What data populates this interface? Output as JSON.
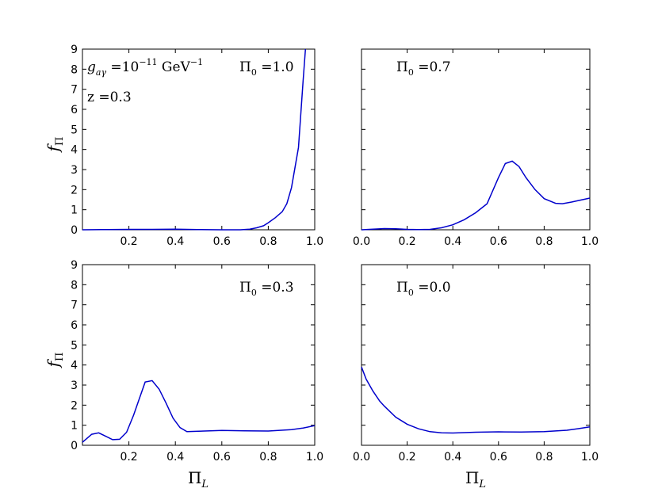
{
  "chart_data": [
    {
      "type": "line",
      "panel": "top-left",
      "annotations": [
        "g_aγ = 10^-11 GeV^-1",
        "z = 0.3",
        "Π_0 = 1.0"
      ],
      "ylabel": "f_Π",
      "xlabel": "",
      "xlim": [
        0.0,
        1.0
      ],
      "ylim": [
        0,
        9
      ],
      "x_ticks": [
        "0.2",
        "0.4",
        "0.6",
        "0.8",
        "1.0"
      ],
      "y_ticks": [
        "0",
        "1",
        "2",
        "3",
        "4",
        "5",
        "6",
        "7",
        "8",
        "9"
      ],
      "series": [
        {
          "x": [
            0.0,
            0.1,
            0.2,
            0.3,
            0.4,
            0.5,
            0.6,
            0.68,
            0.72,
            0.75,
            0.78,
            0.8,
            0.83,
            0.86,
            0.88,
            0.9,
            0.93,
            0.95,
            0.96
          ],
          "y": [
            0.0,
            0.01,
            0.02,
            0.02,
            0.03,
            0.01,
            0.0,
            0.0,
            0.03,
            0.1,
            0.2,
            0.35,
            0.6,
            0.9,
            1.3,
            2.1,
            4.1,
            7.4,
            9.0
          ]
        }
      ]
    },
    {
      "type": "line",
      "panel": "top-right",
      "annotations": [
        "Π_0 = 0.7"
      ],
      "ylabel": "",
      "xlabel": "",
      "xlim": [
        0.0,
        1.0
      ],
      "ylim": [
        0,
        9
      ],
      "x_ticks": [
        "0.0",
        "0.2",
        "0.4",
        "0.6",
        "0.8",
        "1.0"
      ],
      "y_ticks": [],
      "series": [
        {
          "x": [
            0.0,
            0.05,
            0.1,
            0.15,
            0.2,
            0.25,
            0.3,
            0.35,
            0.4,
            0.45,
            0.5,
            0.55,
            0.6,
            0.63,
            0.66,
            0.69,
            0.72,
            0.76,
            0.8,
            0.85,
            0.88,
            0.92,
            0.96,
            1.0
          ],
          "y": [
            0.0,
            0.03,
            0.06,
            0.05,
            0.02,
            0.01,
            0.02,
            0.1,
            0.25,
            0.5,
            0.85,
            1.3,
            2.6,
            3.3,
            3.42,
            3.15,
            2.6,
            2.0,
            1.55,
            1.32,
            1.3,
            1.38,
            1.48,
            1.58
          ]
        }
      ]
    },
    {
      "type": "line",
      "panel": "bottom-left",
      "annotations": [
        "Π_0 = 0.3"
      ],
      "ylabel": "f_Π",
      "xlabel": "Π_L",
      "xlim": [
        0.0,
        1.0
      ],
      "ylim": [
        0,
        9
      ],
      "x_ticks": [
        "0.2",
        "0.4",
        "0.6",
        "0.8",
        "1.0"
      ],
      "y_ticks": [
        "0",
        "1",
        "2",
        "3",
        "4",
        "5",
        "6",
        "7",
        "8",
        "9"
      ],
      "series": [
        {
          "x": [
            0.0,
            0.04,
            0.07,
            0.1,
            0.13,
            0.16,
            0.19,
            0.22,
            0.25,
            0.27,
            0.3,
            0.33,
            0.36,
            0.39,
            0.42,
            0.45,
            0.5,
            0.55,
            0.6,
            0.7,
            0.8,
            0.9,
            0.95,
            1.0
          ],
          "y": [
            0.15,
            0.55,
            0.62,
            0.45,
            0.28,
            0.3,
            0.65,
            1.5,
            2.5,
            3.15,
            3.22,
            2.8,
            2.1,
            1.35,
            0.88,
            0.68,
            0.7,
            0.72,
            0.74,
            0.72,
            0.71,
            0.78,
            0.86,
            0.98
          ]
        }
      ]
    },
    {
      "type": "line",
      "panel": "bottom-right",
      "annotations": [
        "Π_0 = 0.0"
      ],
      "ylabel": "",
      "xlabel": "Π_L",
      "xlim": [
        0.0,
        1.0
      ],
      "ylim": [
        0,
        9
      ],
      "x_ticks": [
        "0.0",
        "0.2",
        "0.4",
        "0.6",
        "0.8",
        "1.0"
      ],
      "y_ticks": [],
      "series": [
        {
          "x": [
            0.0,
            0.02,
            0.05,
            0.08,
            0.1,
            0.15,
            0.2,
            0.25,
            0.3,
            0.35,
            0.4,
            0.5,
            0.6,
            0.7,
            0.8,
            0.9,
            0.95,
            1.0
          ],
          "y": [
            3.9,
            3.3,
            2.7,
            2.2,
            1.95,
            1.4,
            1.05,
            0.82,
            0.68,
            0.62,
            0.61,
            0.65,
            0.67,
            0.66,
            0.68,
            0.75,
            0.83,
            0.92
          ]
        }
      ]
    }
  ]
}
